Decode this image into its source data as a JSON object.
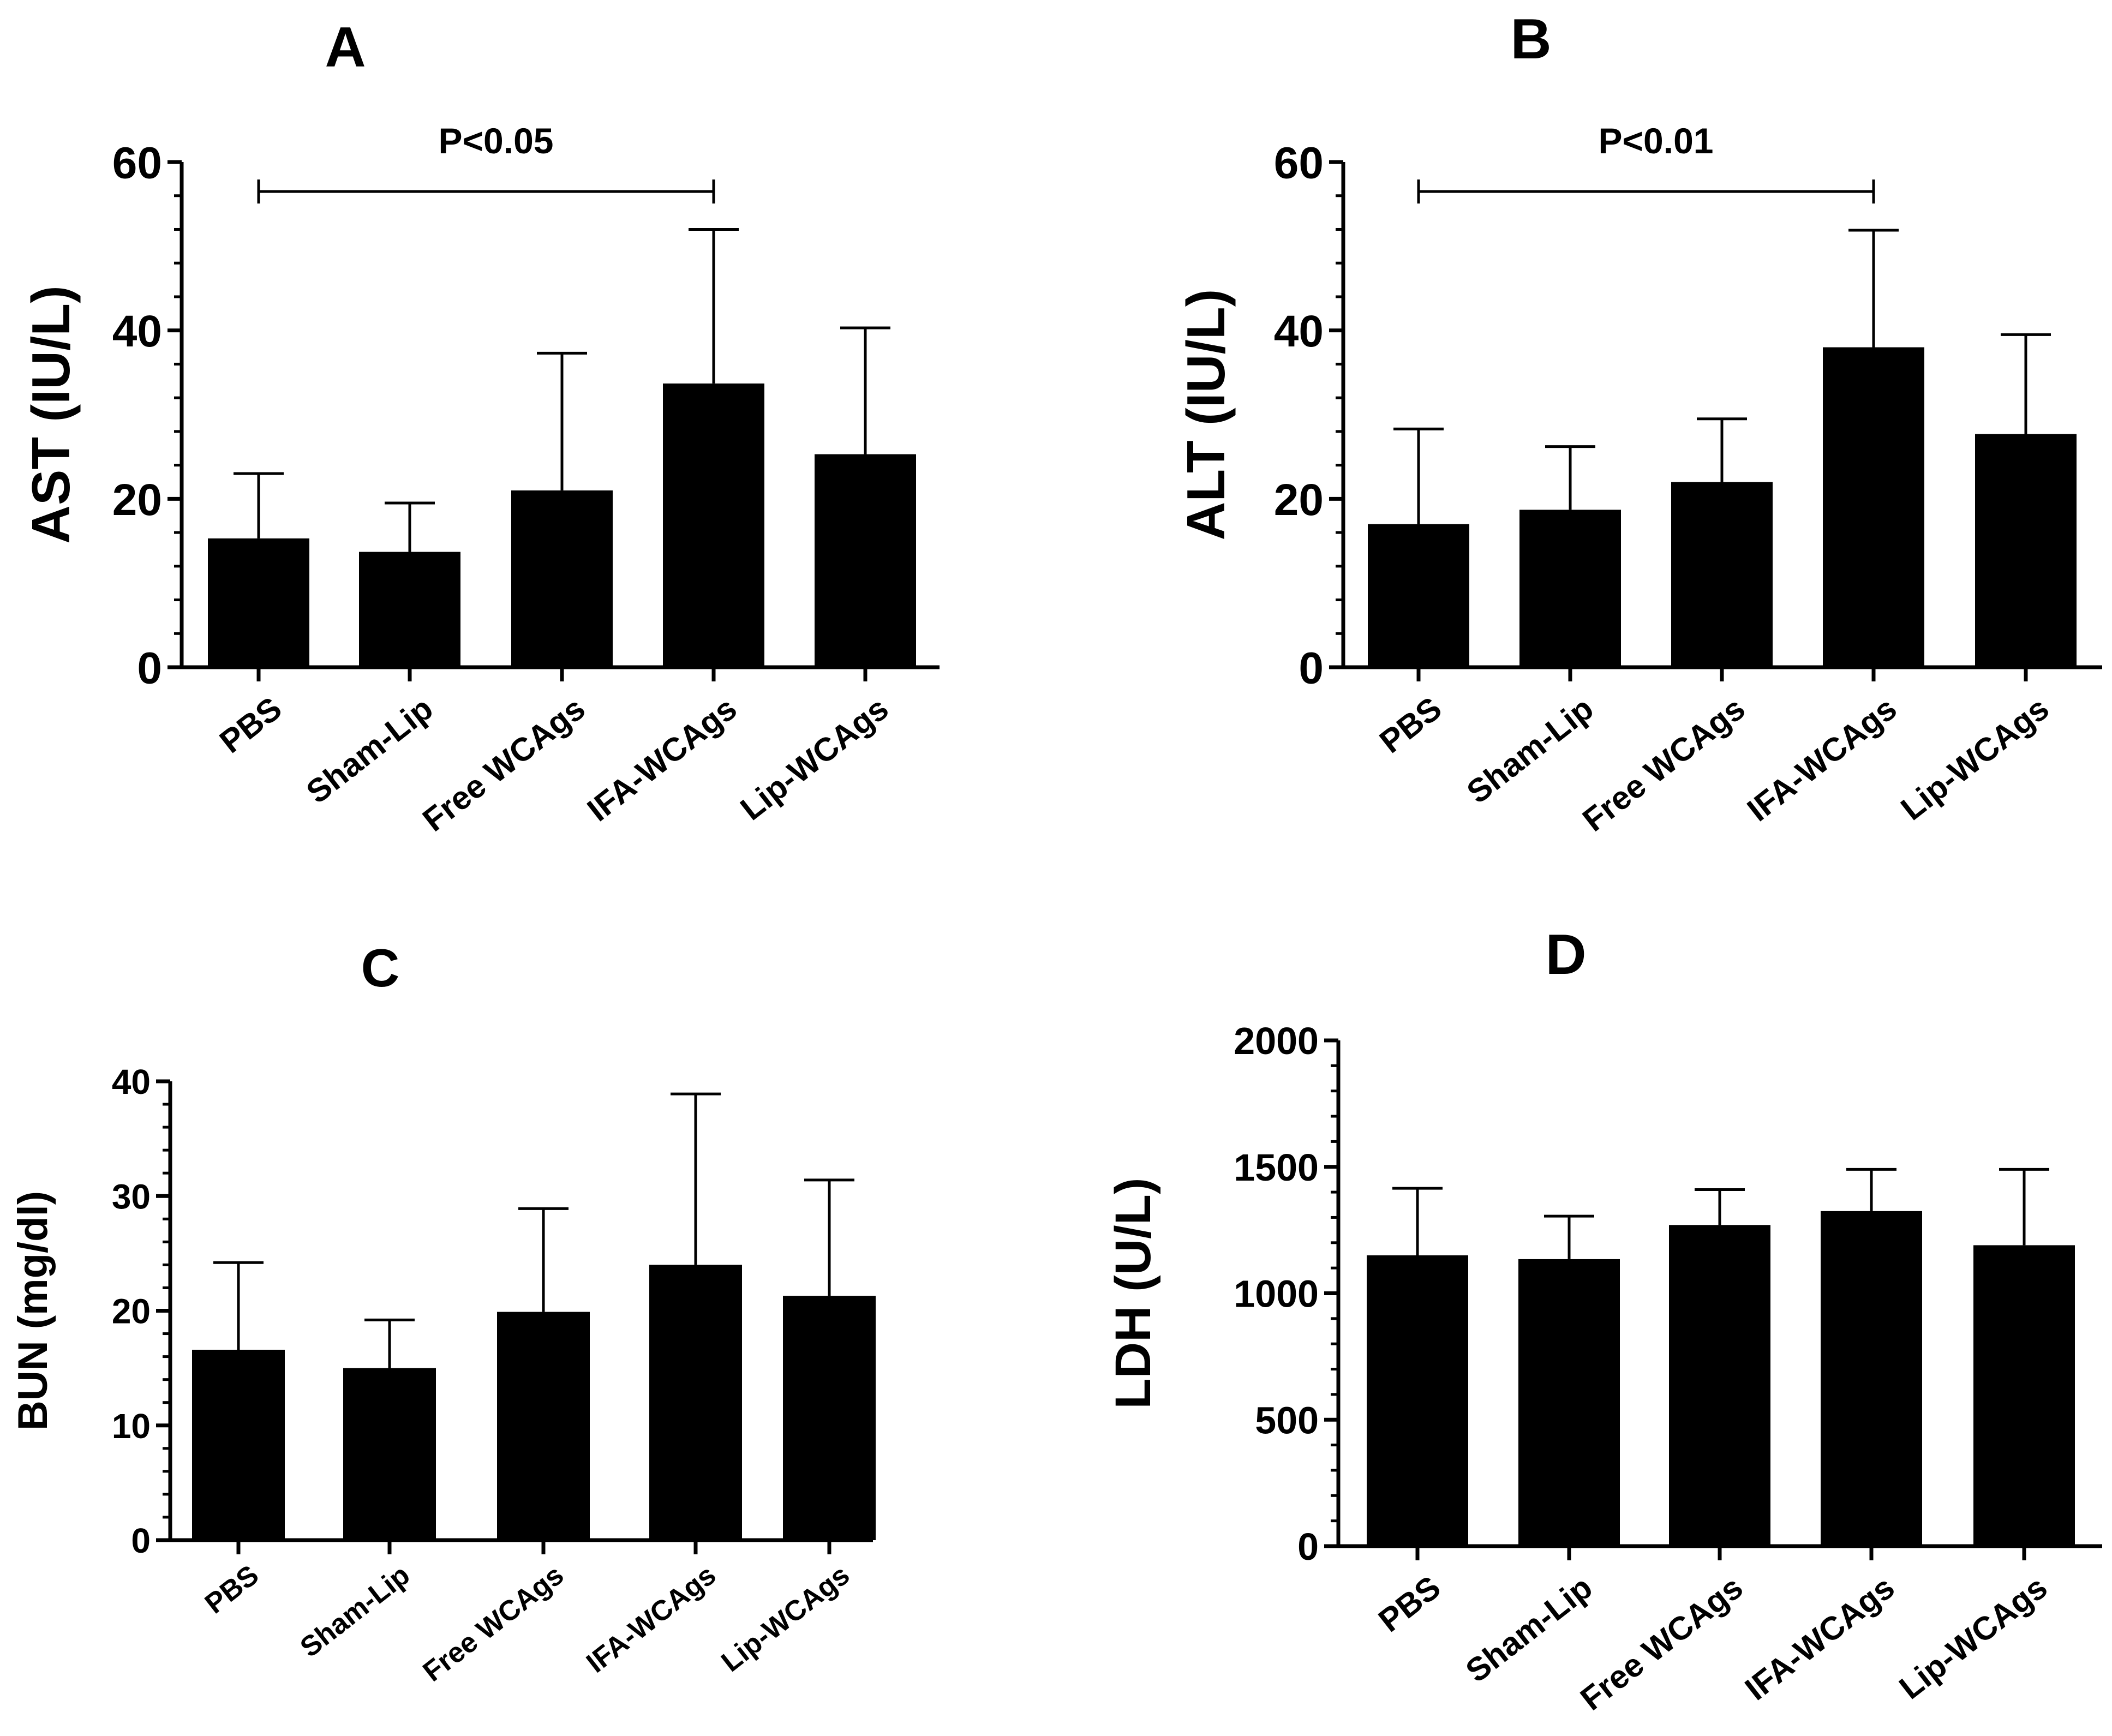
{
  "chart_data": [
    {
      "id": "A",
      "type": "bar",
      "panel_label": "A",
      "title": "",
      "xlabel": "",
      "ylabel": "AST (IU/L)",
      "categories": [
        "PBS",
        "Sham-Lip",
        "Free WCAgs",
        "IFA-WCAgs",
        "Lip-WCAgs"
      ],
      "series": [
        {
          "name": "mean",
          "values": [
            15.3,
            13.7,
            21.0,
            33.7,
            25.3
          ]
        }
      ],
      "error_bars": [
        7.7,
        5.8,
        16.3,
        18.3,
        15.0
      ],
      "ylim": [
        0,
        60
      ],
      "yticks": [
        "0",
        "20",
        "40",
        "60"
      ],
      "significance": {
        "label": "P<0.05",
        "from": "PBS",
        "to": "IFA-WCAgs",
        "y": 56.5
      },
      "grid": false,
      "legend": "none"
    },
    {
      "id": "B",
      "type": "bar",
      "panel_label": "B",
      "title": "",
      "xlabel": "",
      "ylabel": "ALT (IU/L)",
      "categories": [
        "PBS",
        "Sham-Lip",
        "Free WCAgs",
        "IFA-WCAgs",
        "Lip-WCAgs"
      ],
      "series": [
        {
          "name": "mean",
          "values": [
            17.0,
            18.7,
            22.0,
            38.0,
            27.7
          ]
        }
      ],
      "error_bars": [
        11.3,
        7.5,
        7.5,
        13.9,
        11.8
      ],
      "ylim": [
        0,
        60
      ],
      "yticks": [
        "0",
        "20",
        "40",
        "60"
      ],
      "significance": {
        "label": "P<0.01",
        "from": "PBS",
        "to": "IFA-WCAgs",
        "y": 56.5
      },
      "grid": false,
      "legend": "none"
    },
    {
      "id": "C",
      "type": "bar",
      "panel_label": "C",
      "title": "",
      "xlabel": "",
      "ylabel": "BUN (mg/dl)",
      "categories": [
        "PBS",
        "Sham-Lip",
        "Free WCAgs",
        "IFA-WCAgs",
        "Lip-WCAgs"
      ],
      "series": [
        {
          "name": "mean",
          "values": [
            16.6,
            15.0,
            19.9,
            24.0,
            21.3
          ]
        }
      ],
      "error_bars": [
        7.6,
        4.2,
        9.0,
        14.9,
        10.1
      ],
      "ylim": [
        0,
        40
      ],
      "yticks": [
        "0",
        "10",
        "20",
        "30",
        "40"
      ],
      "grid": false,
      "legend": "none"
    },
    {
      "id": "D",
      "type": "bar",
      "panel_label": "D",
      "title": "",
      "xlabel": "",
      "ylabel": "LDH (U/L)",
      "categories": [
        "PBS",
        "Sham-Lip",
        "Free WCAgs",
        "IFA-WCAgs",
        "Lip-WCAgs"
      ],
      "series": [
        {
          "name": "mean",
          "values": [
            1150,
            1135,
            1270,
            1325,
            1190
          ]
        }
      ],
      "error_bars": [
        265,
        170,
        140,
        165,
        300
      ],
      "ylim": [
        0,
        2000
      ],
      "yticks": [
        "0",
        "500",
        "1000",
        "1500",
        "2000"
      ],
      "grid": false,
      "legend": "none"
    }
  ]
}
